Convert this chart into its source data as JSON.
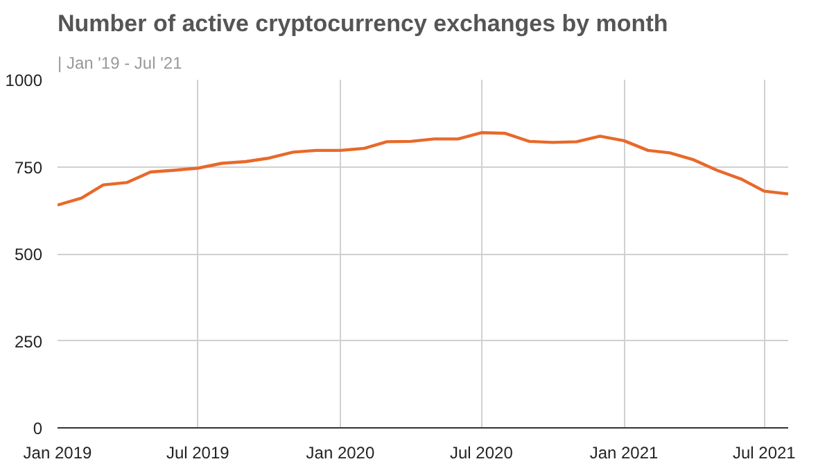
{
  "chart_data": {
    "type": "line",
    "title": "Number of active cryptocurrency exchanges by month",
    "subtitle": "| Jan '19 - Jul '21",
    "x": [
      "2019-01",
      "2019-02",
      "2019-03",
      "2019-04",
      "2019-05",
      "2019-06",
      "2019-07",
      "2019-08",
      "2019-09",
      "2019-10",
      "2019-11",
      "2019-12",
      "2020-01",
      "2020-02",
      "2020-03",
      "2020-04",
      "2020-05",
      "2020-06",
      "2020-07",
      "2020-08",
      "2020-09",
      "2020-10",
      "2020-11",
      "2020-12",
      "2021-01",
      "2021-02",
      "2021-03",
      "2021-04",
      "2021-05",
      "2021-06",
      "2021-07",
      "2021-08"
    ],
    "series": [
      {
        "color": "#e8692a",
        "values": [
          640,
          660,
          698,
          705,
          735,
          740,
          746,
          760,
          765,
          775,
          792,
          797,
          797,
          803,
          822,
          823,
          830,
          830,
          848,
          846,
          823,
          820,
          822,
          838,
          825,
          797,
          790,
          770,
          740,
          715,
          680,
          672
        ]
      }
    ],
    "xlim": [
      "2019-01",
      "2021-08"
    ],
    "xticks": [
      {
        "value": "2019-01",
        "label": "Jan 2019"
      },
      {
        "value": "2019-07",
        "label": "Jul 2019"
      },
      {
        "value": "2020-01",
        "label": "Jan 2020"
      },
      {
        "value": "2020-07",
        "label": "Jul 2020"
      },
      {
        "value": "2021-01",
        "label": "Jan 2021"
      },
      {
        "value": "2021-07",
        "label": "Jul 2021"
      }
    ],
    "ylim": [
      0,
      1000
    ],
    "yticks": [
      0,
      250,
      500,
      750,
      1000
    ],
    "grid": true,
    "marker": "none",
    "line_style": "solid"
  }
}
